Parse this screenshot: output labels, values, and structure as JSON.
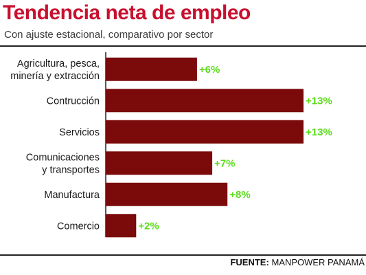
{
  "header": {
    "title": "Tendencia neta de empleo",
    "subtitle": "Con ajuste estacional, comparativo por sector"
  },
  "footer": {
    "source_label": "FUENTE:",
    "source_value": "MANPOWER PANAMÁ"
  },
  "colors": {
    "title": "#c8102e",
    "bar": "#7b0a0a",
    "value_label": "#5bdc1a",
    "axis": "#222222"
  },
  "chart_data": {
    "type": "bar",
    "orientation": "horizontal",
    "title": "Tendencia neta de empleo",
    "subtitle": "Con ajuste estacional, comparativo por sector",
    "xlabel": "",
    "ylabel": "",
    "categories": [
      [
        "Agricultura, pesca,",
        "minería y extracción"
      ],
      [
        "Contrucción"
      ],
      [
        "Servicios"
      ],
      [
        "Comunicaciones",
        "y transportes"
      ],
      [
        "Manufactura"
      ],
      [
        "Comercio"
      ]
    ],
    "values": [
      6,
      13,
      13,
      7,
      8,
      2
    ],
    "value_labels": [
      "+6%",
      "+13%",
      "+13%",
      "+7%",
      "+8%",
      "+2%"
    ],
    "xlim": [
      0,
      13
    ],
    "grid": false,
    "legend": "none"
  }
}
